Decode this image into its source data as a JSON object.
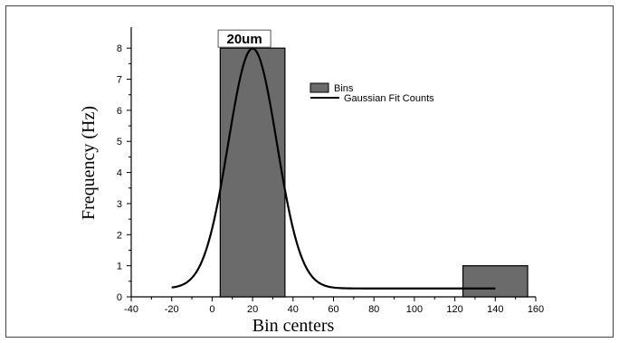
{
  "chart_data": {
    "type": "bar",
    "title": "",
    "xlabel": "Bin centers",
    "ylabel": "Frequency (Hz)",
    "xlim": [
      -40,
      160
    ],
    "ylim": [
      0,
      8.5
    ],
    "xticks": [
      -40,
      -20,
      0,
      20,
      40,
      60,
      80,
      100,
      120,
      140,
      160
    ],
    "yticks": [
      0,
      1,
      2,
      3,
      4,
      5,
      6,
      7,
      8
    ],
    "grid": false,
    "legend_position": "top-right",
    "bar_width": 32,
    "series": [
      {
        "name": "Bins",
        "type": "bar",
        "color": "#6b6b6b",
        "x": [
          20,
          140
        ],
        "values": [
          8,
          1
        ]
      },
      {
        "name": "Gaussian Fit Counts",
        "type": "line",
        "color": "#000000",
        "x_range": [
          -20,
          140
        ],
        "gaussian": {
          "center": 20,
          "amplitude": 7.72,
          "sigma": 12,
          "baseline": 0.27
        }
      }
    ],
    "annotations": [
      {
        "text": "20um",
        "x": 20,
        "y": 8
      }
    ]
  }
}
